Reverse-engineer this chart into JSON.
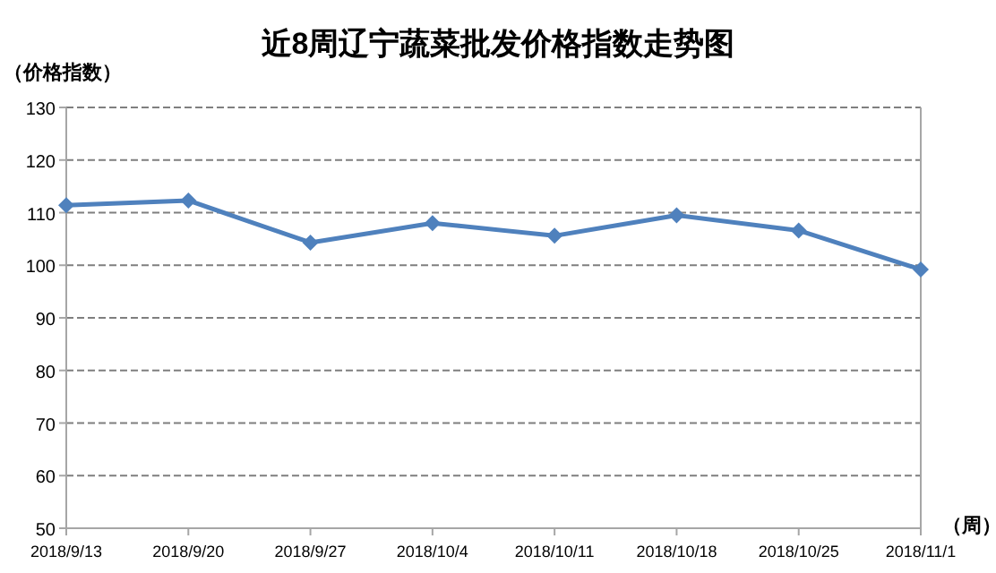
{
  "chart_data": {
    "type": "line",
    "title": "近8周辽宁蔬菜批发价格指数走势图",
    "ylabel": "（价格指数）",
    "xlabel": "（周）",
    "categories": [
      "2018/9/13",
      "2018/9/20",
      "2018/9/27",
      "2018/10/4",
      "2018/10/11",
      "2018/10/18",
      "2018/10/25",
      "2018/11/1"
    ],
    "series": [
      {
        "color": "#4f81bd",
        "values": [
          111.4,
          112.3,
          104.3,
          108.0,
          105.6,
          109.5,
          106.6,
          99.2
        ]
      }
    ],
    "ylim": [
      50,
      130
    ],
    "yticks": [
      50,
      60,
      70,
      80,
      90,
      100,
      110,
      120,
      130
    ],
    "grid": "y",
    "marker": "diamond",
    "line_style": "solid"
  }
}
